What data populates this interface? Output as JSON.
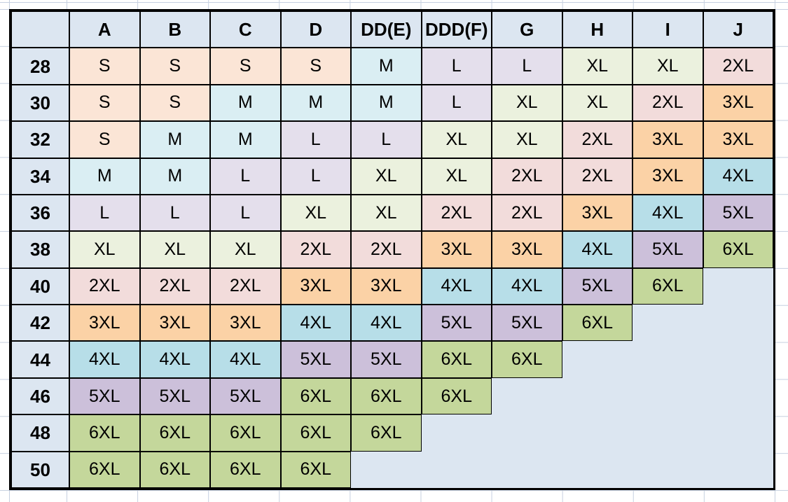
{
  "chart_data": {
    "type": "table",
    "corner_label": "",
    "columns": [
      "A",
      "B",
      "C",
      "D",
      "DD(E)",
      "DDD(F)",
      "G",
      "H",
      "I",
      "J"
    ],
    "rows": [
      {
        "label": "28",
        "cells": [
          "S",
          "S",
          "S",
          "S",
          "M",
          "L",
          "L",
          "XL",
          "XL",
          "2XL"
        ]
      },
      {
        "label": "30",
        "cells": [
          "S",
          "S",
          "M",
          "M",
          "M",
          "L",
          "XL",
          "XL",
          "2XL",
          "3XL"
        ]
      },
      {
        "label": "32",
        "cells": [
          "S",
          "M",
          "M",
          "L",
          "L",
          "XL",
          "XL",
          "2XL",
          "3XL",
          "3XL"
        ]
      },
      {
        "label": "34",
        "cells": [
          "M",
          "M",
          "L",
          "L",
          "XL",
          "XL",
          "2XL",
          "2XL",
          "3XL",
          "4XL"
        ]
      },
      {
        "label": "36",
        "cells": [
          "L",
          "L",
          "L",
          "XL",
          "XL",
          "2XL",
          "2XL",
          "3XL",
          "4XL",
          "5XL"
        ]
      },
      {
        "label": "38",
        "cells": [
          "XL",
          "XL",
          "XL",
          "2XL",
          "2XL",
          "3XL",
          "3XL",
          "4XL",
          "5XL",
          "6XL"
        ]
      },
      {
        "label": "40",
        "cells": [
          "2XL",
          "2XL",
          "2XL",
          "3XL",
          "3XL",
          "4XL",
          "4XL",
          "5XL",
          "6XL",
          ""
        ]
      },
      {
        "label": "42",
        "cells": [
          "3XL",
          "3XL",
          "3XL",
          "4XL",
          "4XL",
          "5XL",
          "5XL",
          "6XL",
          "",
          ""
        ]
      },
      {
        "label": "44",
        "cells": [
          "4XL",
          "4XL",
          "4XL",
          "5XL",
          "5XL",
          "6XL",
          "6XL",
          "",
          "",
          ""
        ]
      },
      {
        "label": "46",
        "cells": [
          "5XL",
          "5XL",
          "5XL",
          "6XL",
          "6XL",
          "6XL",
          "",
          "",
          "",
          ""
        ]
      },
      {
        "label": "48",
        "cells": [
          "6XL",
          "6XL",
          "6XL",
          "6XL",
          "6XL",
          "",
          "",
          "",
          "",
          ""
        ]
      },
      {
        "label": "50",
        "cells": [
          "6XL",
          "6XL",
          "6XL",
          "6XL",
          "",
          "",
          "",
          "",
          "",
          ""
        ]
      }
    ],
    "size_fill_colors": {
      "S": "#fbe5d6",
      "M": "#daeef3",
      "L": "#e4dfec",
      "XL": "#ebf1de",
      "2XL": "#f2dcdb",
      "3XL": "#fbd2a6",
      "4XL": "#b7dee8",
      "5XL": "#ccc0da",
      "6XL": "#c4d79b"
    },
    "header_fill": "#dce6f1",
    "empty_fill": "#dce6f1",
    "border_color": "#000000",
    "gridline_color": "#c6d0e0",
    "canvas_background": "#ffffff",
    "layout_hints": {
      "header_row": "cup sizes across top",
      "row_labels": "band sizes down left side",
      "grid": "on",
      "legend_position": "none"
    }
  }
}
